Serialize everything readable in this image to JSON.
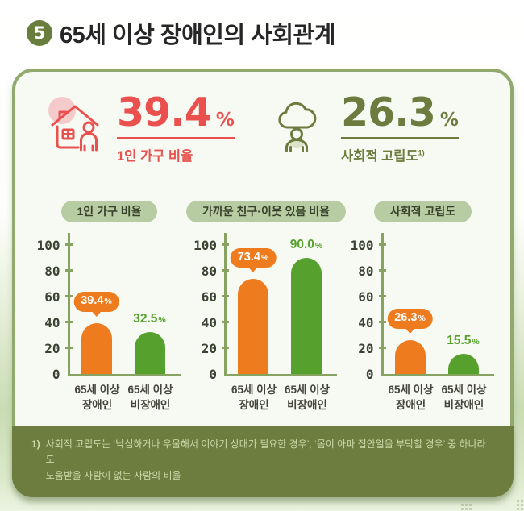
{
  "header": {
    "badge": "5",
    "title": "65세 이상 장애인의 사회관계"
  },
  "stats": [
    {
      "value": "39.4",
      "unit": "%",
      "label": "1인 가구 비율",
      "color": "#e9504e",
      "icon": "house-single-person-icon"
    },
    {
      "value": "26.3",
      "unit": "%",
      "label": "사회적 고립도",
      "footnote_ref": "1)",
      "color": "#6d7c3e",
      "icon": "gloomy-cloud-person-icon"
    }
  ],
  "chart_data": [
    {
      "type": "bar",
      "title": "1인 가구 비율",
      "categories": [
        [
          "65세 이상",
          "장애인"
        ],
        [
          "65세 이상",
          "비장애인"
        ]
      ],
      "values": [
        39.4,
        32.5
      ],
      "value_labels": [
        "39.4%",
        "32.5%"
      ],
      "label_styles": [
        "bubble",
        "plain"
      ],
      "bar_colors": [
        "#ee7b1d",
        "#56a12e"
      ],
      "ylim": [
        0,
        100
      ],
      "yticks": [
        0,
        20,
        40,
        60,
        80,
        100
      ],
      "legend": "none",
      "grid": false
    },
    {
      "type": "bar",
      "title": "가까운 친구·이웃 있음 비율",
      "categories": [
        [
          "65세 이상",
          "장애인"
        ],
        [
          "65세 이상",
          "비장애인"
        ]
      ],
      "values": [
        73.4,
        90.0
      ],
      "value_labels": [
        "73.4%",
        "90.0%"
      ],
      "label_styles": [
        "bubble",
        "plain"
      ],
      "bar_colors": [
        "#ee7b1d",
        "#56a12e"
      ],
      "ylim": [
        0,
        100
      ],
      "yticks": [
        0,
        20,
        40,
        60,
        80,
        100
      ],
      "legend": "none",
      "grid": false
    },
    {
      "type": "bar",
      "title": "사회적 고립도",
      "categories": [
        [
          "65세 이상",
          "장애인"
        ],
        [
          "65세 이상",
          "비장애인"
        ]
      ],
      "values": [
        26.3,
        15.5
      ],
      "value_labels": [
        "26.3%",
        "15.5%"
      ],
      "label_styles": [
        "bubble",
        "plain"
      ],
      "bar_colors": [
        "#ee7b1d",
        "#56a12e"
      ],
      "ylim": [
        0,
        100
      ],
      "yticks": [
        0,
        20,
        40,
        60,
        80,
        100
      ],
      "legend": "none",
      "grid": false
    }
  ],
  "footnote": {
    "marker": "1)",
    "line1": "사회적 고립도는 ‘낙심하거나 우울해서 이야기 상대가 필요한 경우’, ‘몸이 아파 집안일을 부탁할 경우’ 중 하나라도",
    "line2": "도움받을 사람이 없는 사람의 비율"
  },
  "colors": {
    "accent_red": "#e9504e",
    "accent_olive": "#6d7c3e",
    "bar_orange": "#ee7b1d",
    "bar_green": "#56a12e",
    "card_border": "#90aa6d",
    "badge_pill_bg": "#b7cca2",
    "footnote_bg": "#6d7d40"
  }
}
